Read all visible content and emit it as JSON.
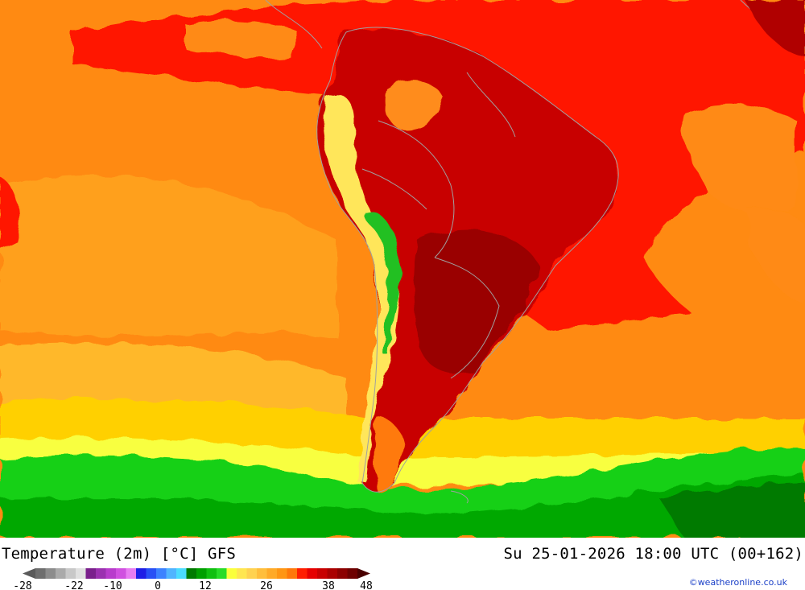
{
  "map": {
    "title": "Temperature (2m) [°C] GFS",
    "valid_time": "Su 25-01-2026 18:00 UTC (00+162)",
    "credit": "©weatheronline.co.uk",
    "colors": {
      "ocean_far": "#ffa01f",
      "ocean_mid": "#ff8a12",
      "tropics": "#ff1400",
      "land_hot": "#c80000",
      "land_hotter": "#9a0000",
      "south_yellow": "#ffd000",
      "southern_green": "#19d019",
      "andes_yellow": "#ffe65a",
      "andes_green": "#20c020",
      "borders": "#a0a0a0"
    }
  },
  "legend": {
    "tick_labels": [
      "-28",
      "-22",
      "-10",
      "0",
      "12",
      "26",
      "38",
      "48"
    ],
    "colors": [
      "#6e6e6e",
      "#8c8c8c",
      "#aaaaaa",
      "#c8c8c8",
      "#e0e0e0",
      "#7a1f8c",
      "#9b30b0",
      "#b83ccc",
      "#d050e0",
      "#e87cf2",
      "#1e1ee6",
      "#2850f5",
      "#3c82ff",
      "#50b4ff",
      "#4bdcff",
      "#007a00",
      "#00a000",
      "#10c010",
      "#28dc28",
      "#faff3c",
      "#ffe650",
      "#ffd250",
      "#ffbe3c",
      "#ffaa28",
      "#ff9614",
      "#ff780a",
      "#ff1e00",
      "#e60000",
      "#c80000",
      "#aa0000",
      "#8c0000",
      "#6e0000"
    ]
  }
}
